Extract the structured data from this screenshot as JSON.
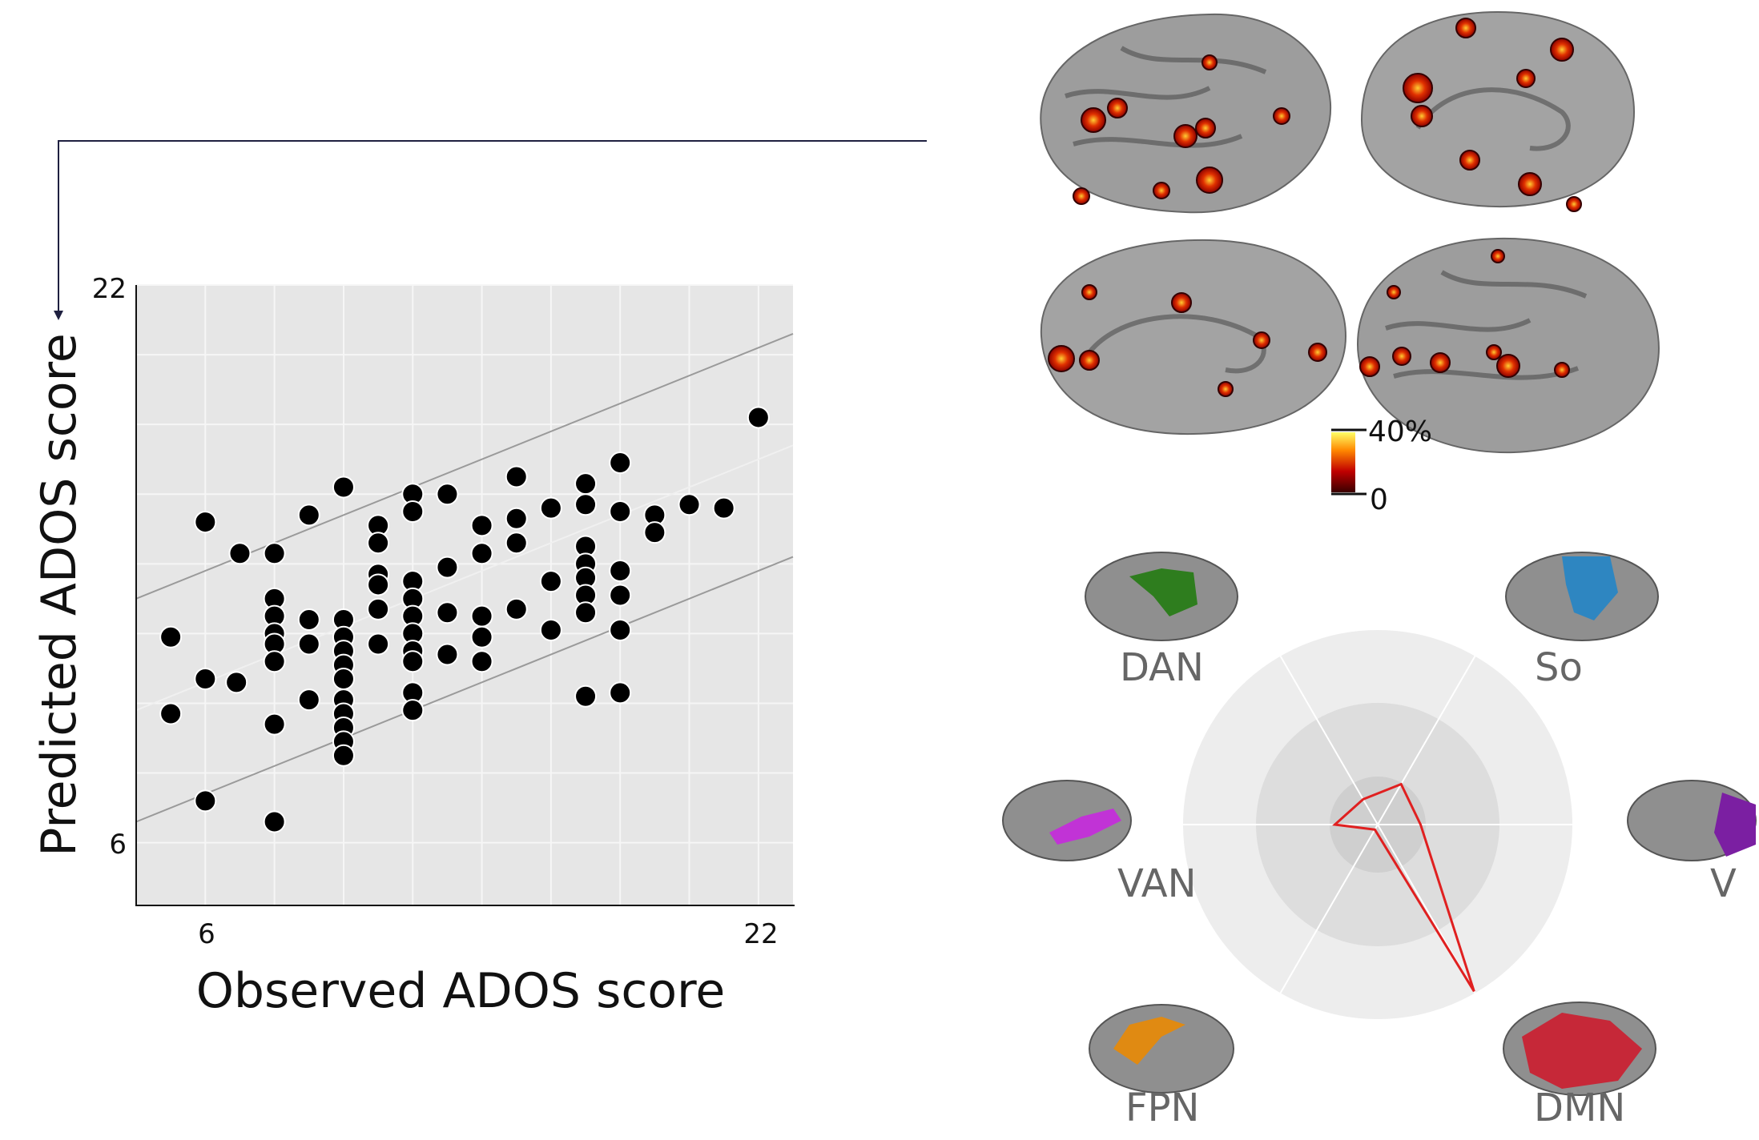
{
  "chart_data": [
    {
      "type": "scatter",
      "xlabel": "Observed ADOS score",
      "ylabel": "Predicted ADOS score",
      "xlim": [
        4,
        23
      ],
      "ylim": [
        4.2,
        22
      ],
      "xticks": [
        6,
        22
      ],
      "yticks": [
        6,
        22
      ],
      "grid": true,
      "regression": {
        "slope": 0.4,
        "intercept": 8.2,
        "band": 3.2
      },
      "points": [
        [
          5,
          11.9
        ],
        [
          5,
          9.7
        ],
        [
          6,
          15.2
        ],
        [
          6,
          10.7
        ],
        [
          6,
          7.2
        ],
        [
          6.9,
          10.6
        ],
        [
          7,
          14.3
        ],
        [
          8,
          14.3
        ],
        [
          8,
          13
        ],
        [
          8,
          12.5
        ],
        [
          8,
          12
        ],
        [
          8,
          11.7
        ],
        [
          8,
          11.2
        ],
        [
          8,
          9.4
        ],
        [
          8,
          6.6
        ],
        [
          9,
          15.4
        ],
        [
          9,
          12.4
        ],
        [
          9,
          11.7
        ],
        [
          9,
          10.1
        ],
        [
          10,
          16.2
        ],
        [
          10,
          12.4
        ],
        [
          10,
          10.1
        ],
        [
          10,
          11.9
        ],
        [
          10,
          11.5
        ],
        [
          10,
          11.1
        ],
        [
          10,
          10.7
        ],
        [
          10,
          9.7
        ],
        [
          10,
          9.3
        ],
        [
          10,
          8.9
        ],
        [
          10,
          8.5
        ],
        [
          11,
          15.1
        ],
        [
          11,
          14.6
        ],
        [
          11,
          13.7
        ],
        [
          11,
          13.4
        ],
        [
          11,
          12.7
        ],
        [
          11,
          11.7
        ],
        [
          12,
          16
        ],
        [
          12,
          15.5
        ],
        [
          12,
          13.5
        ],
        [
          12,
          13
        ],
        [
          12,
          12.5
        ],
        [
          12,
          12
        ],
        [
          12,
          11.5
        ],
        [
          12,
          11.2
        ],
        [
          12,
          10.3
        ],
        [
          12,
          9.8
        ],
        [
          13,
          16
        ],
        [
          13,
          13.9
        ],
        [
          13,
          12.6
        ],
        [
          13,
          11.4
        ],
        [
          14,
          15.1
        ],
        [
          14,
          14.3
        ],
        [
          14,
          12.5
        ],
        [
          14,
          11.9
        ],
        [
          14,
          11.2
        ],
        [
          15,
          16.5
        ],
        [
          15,
          15.3
        ],
        [
          15,
          14.6
        ],
        [
          15,
          12.7
        ],
        [
          16,
          15.6
        ],
        [
          16,
          13.5
        ],
        [
          16,
          12.1
        ],
        [
          17,
          16.3
        ],
        [
          17,
          15.7
        ],
        [
          17,
          14.5
        ],
        [
          17,
          14
        ],
        [
          17,
          13.6
        ],
        [
          17,
          13.1
        ],
        [
          17,
          12.6
        ],
        [
          17,
          10.2
        ],
        [
          18,
          16.9
        ],
        [
          18,
          15.5
        ],
        [
          18,
          13.8
        ],
        [
          18,
          13.1
        ],
        [
          18,
          12.1
        ],
        [
          18,
          10.3
        ],
        [
          19,
          15.4
        ],
        [
          19,
          14.9
        ],
        [
          20,
          15.7
        ],
        [
          21,
          15.6
        ],
        [
          22,
          18.2
        ]
      ]
    },
    {
      "type": "radar",
      "axes": [
        "DAN",
        "So",
        "V",
        "DMN",
        "FPN",
        "VAN"
      ],
      "values": [
        0.15,
        0.24,
        0.22,
        0.99,
        0.03,
        0.22
      ],
      "max": 1
    }
  ],
  "colorbar": {
    "max_label": "40%",
    "min_label": "0"
  },
  "colors": {
    "plot_bg": "#e6e6e6",
    "grid": "#f6f6f6",
    "dot": "#000000",
    "radar_line": "#e02020",
    "radar_outer": "#ededed",
    "radar_mid": "#dddddd",
    "radar_inner": "#cfcfcf",
    "network_DAN": "#2e7d1e",
    "network_So": "#2e86c1",
    "network_V": "#7b1fa2",
    "network_VAN": "#c133d6",
    "network_FPN": "#e08a12",
    "network_DMN": "#c62838"
  }
}
